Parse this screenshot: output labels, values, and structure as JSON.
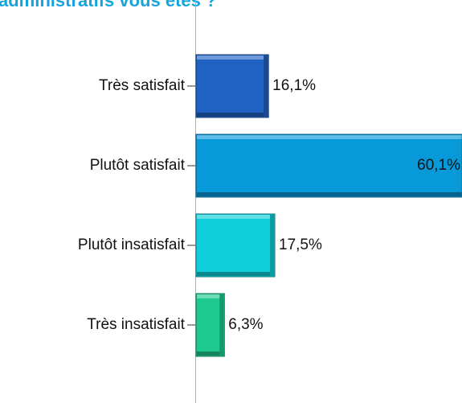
{
  "chart_data": {
    "type": "barh",
    "title": "administratifs vous êtes ?",
    "categories": [
      "Très satisfait",
      "Plutôt satisfait",
      "Plutôt insatisfait",
      "Très insatisfait"
    ],
    "values": [
      16.1,
      60.1,
      17.5,
      6.3
    ],
    "value_labels": [
      "16,1%",
      "60,1%",
      "17,5%",
      "6,3%"
    ],
    "colors": [
      "#1f62c4",
      "#0799d8",
      "#0fd0da",
      "#1ec98f"
    ]
  }
}
